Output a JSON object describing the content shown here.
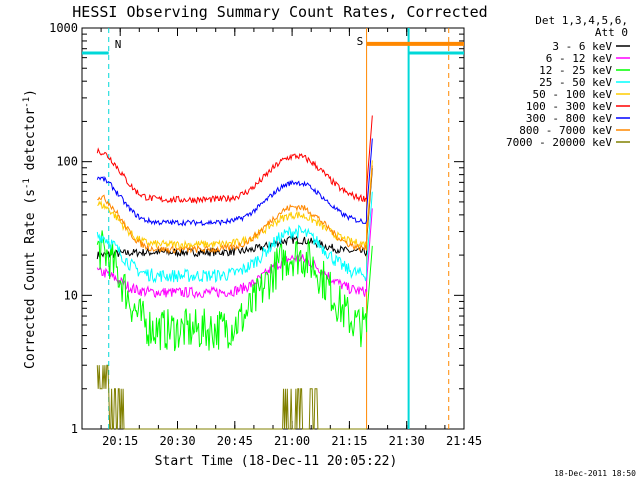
{
  "chart_data": {
    "type": "line",
    "title": "HESSI Observing Summary Count Rates, Corrected",
    "xlabel": "Start Time (18-Dec-11 20:05:22)",
    "ylabel_main": "Corrected Count Rate (s",
    "ylabel_sup1": "-1",
    "ylabel_mid": " detector",
    "ylabel_sup2": "-1",
    "ylabel_end": ")",
    "yscale": "log",
    "ylim": [
      1,
      1000
    ],
    "xlim_minutes": [
      0,
      100
    ],
    "x_ticks": [
      {
        "min": 10,
        "label": "20:15"
      },
      {
        "min": 25,
        "label": "20:30"
      },
      {
        "min": 40,
        "label": "20:45"
      },
      {
        "min": 55,
        "label": "21:00"
      },
      {
        "min": 70,
        "label": "21:15"
      },
      {
        "min": 85,
        "label": "21:30"
      },
      {
        "min": 100,
        "label": "21:45"
      }
    ],
    "y_ticks": [
      {
        "value": 1,
        "label": "1"
      },
      {
        "value": 10,
        "label": "10"
      },
      {
        "value": 100,
        "label": "100"
      },
      {
        "value": 1000,
        "label": "1000"
      }
    ],
    "legend_header": [
      "Det 1,3,4,5,6,",
      "Att 0"
    ],
    "legend_position": "right",
    "timestamp": "18-Dec-2011 18:50",
    "flags": [
      {
        "label": "N",
        "color": "#00d8d8"
      },
      {
        "label": "S",
        "color": "#ff8800"
      }
    ],
    "series": [
      {
        "name": "3 - 6 keV",
        "color": "#000000",
        "edge": 20,
        "low": 21,
        "mid": 26,
        "noise": 0.03
      },
      {
        "name": "6 - 12 keV",
        "color": "#ff00ff",
        "edge": 15,
        "low": 10.5,
        "mid": 19,
        "noise": 0.04
      },
      {
        "name": "12 - 25 keV",
        "color": "#00ff00",
        "edge": 22,
        "low": 5.5,
        "mid": 20,
        "noise": 0.08
      },
      {
        "name": "25 - 50 keV",
        "color": "#00ffff",
        "edge": 28,
        "low": 14,
        "mid": 30,
        "noise": 0.05
      },
      {
        "name": "50 - 100 keV",
        "color": "#ffcc00",
        "edge": 48,
        "low": 24,
        "mid": 40,
        "noise": 0.03
      },
      {
        "name": "100 - 300 keV",
        "color": "#ff0000",
        "edge": 120,
        "low": 52,
        "mid": 110,
        "noise": 0.025
      },
      {
        "name": "300 - 800 keV",
        "color": "#0000ff",
        "edge": 76,
        "low": 35,
        "mid": 70,
        "noise": 0.02
      },
      {
        "name": "800 - 7000 keV",
        "color": "#ff8800",
        "edge": 55,
        "low": 22,
        "mid": 46,
        "noise": 0.025
      },
      {
        "name": "7000 - 20000 keV",
        "color": "#808000",
        "edge": 2.5,
        "low": 1,
        "mid": 1.8,
        "noise": 0
      }
    ]
  }
}
